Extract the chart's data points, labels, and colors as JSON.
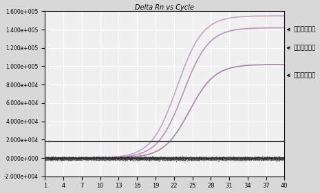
{
  "title": "Delta Rn vs Cycle",
  "xlim": [
    1,
    40
  ],
  "ylim": [
    -20000,
    160000
  ],
  "yticks": [
    -20000,
    0,
    20000,
    40000,
    60000,
    80000,
    100000,
    120000,
    140000,
    160000
  ],
  "ytick_labels": [
    "-2.000e+004",
    "0.000e+000",
    "2.000e+004",
    "4.000e+004",
    "6.000e+004",
    "8.000e+004",
    "1.000e+005",
    "1.200e+005",
    "1.400e+005",
    "1.600e+005"
  ],
  "xticks": [
    1,
    4,
    7,
    10,
    13,
    16,
    19,
    22,
    25,
    28,
    31,
    34,
    37,
    40
  ],
  "annotation1": "家畜啤衣原体",
  "annotation2": "流产啤衣原体",
  "annotation3": "鹦鹄热衣原体",
  "bg_color": "#d8d8d8",
  "plot_bg_color": "#f0f0f0",
  "threshold_y": 18000,
  "sigmoid_midpoint1": 22.5,
  "sigmoid_midpoint2": 23.5,
  "sigmoid_midpoint3": 24.5,
  "sigmoid_max1": 155000,
  "sigmoid_max2": 142000,
  "sigmoid_max3": 102000,
  "sigmoid_steepness": 0.48,
  "line_color1": "#c8a0c8",
  "line_color2": "#b890b8",
  "line_color3": "#a880a8",
  "threshold_color": "#404040",
  "noise_lines": 10,
  "ann_y1": 140000,
  "ann_y2": 120000,
  "ann_y3": 90000
}
